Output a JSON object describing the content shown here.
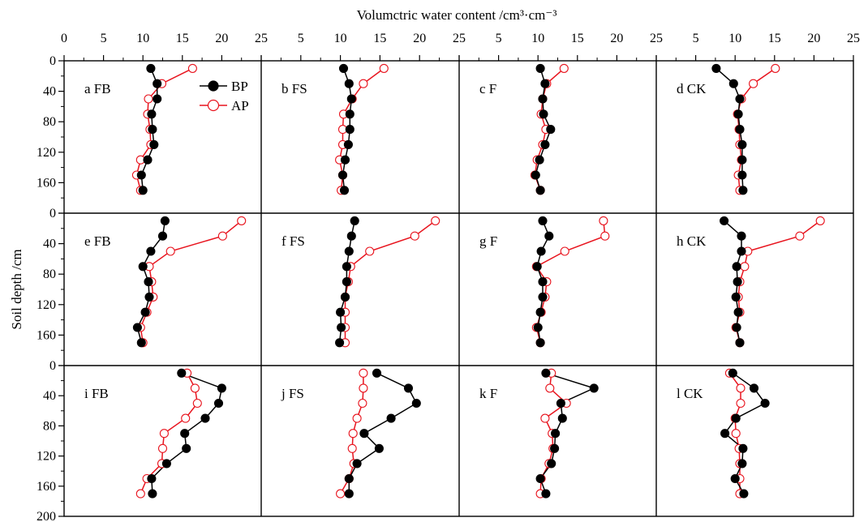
{
  "figure": {
    "x_axis_title": "Volumctric water content /cm³·cm⁻³",
    "y_axis_title": "Soil depth /cm",
    "legend": [
      {
        "name": "BP",
        "color": "#000000",
        "marker": "filled-circle"
      },
      {
        "name": "AP",
        "color": "#e8141e",
        "marker": "open-circle"
      }
    ],
    "x_tick_labels": [
      "0",
      "5",
      "10",
      "15",
      "20",
      "25"
    ],
    "y_tick_labels": [
      "0",
      "40",
      "80",
      "120",
      "160",
      "200"
    ]
  },
  "chart_data": [
    {
      "type": "line",
      "panel": "a FB",
      "xlim": [
        0,
        25
      ],
      "ylim": [
        200,
        0
      ],
      "series": [
        {
          "name": "BP",
          "x": [
            11.0,
            11.8,
            11.8,
            11.1,
            11.2,
            11.4,
            10.6,
            9.8,
            10.0
          ],
          "y": [
            10,
            30,
            50,
            70,
            90,
            110,
            130,
            150,
            170
          ]
        },
        {
          "name": "AP",
          "x": [
            16.3,
            12.4,
            10.7,
            10.6,
            10.9,
            11.0,
            9.7,
            9.2,
            9.7
          ],
          "y": [
            10,
            30,
            50,
            70,
            90,
            110,
            130,
            150,
            170
          ]
        }
      ]
    },
    {
      "type": "line",
      "panel": "b FS",
      "xlim": [
        0,
        25
      ],
      "ylim": [
        200,
        0
      ],
      "series": [
        {
          "name": "BP",
          "x": [
            10.4,
            11.1,
            11.4,
            11.2,
            11.2,
            11.0,
            10.6,
            10.3,
            10.5
          ],
          "y": [
            10,
            30,
            50,
            70,
            90,
            110,
            130,
            150,
            170
          ]
        },
        {
          "name": "AP",
          "x": [
            15.5,
            12.9,
            11.5,
            10.4,
            10.3,
            10.3,
            9.9,
            10.3,
            10.1
          ],
          "y": [
            10,
            30,
            50,
            70,
            90,
            110,
            130,
            150,
            170
          ]
        }
      ]
    },
    {
      "type": "line",
      "panel": "c F",
      "xlim": [
        0,
        25
      ],
      "ylim": [
        200,
        0
      ],
      "series": [
        {
          "name": "BP",
          "x": [
            10.3,
            10.9,
            10.6,
            10.7,
            11.6,
            10.9,
            10.2,
            9.7,
            10.3
          ],
          "y": [
            10,
            30,
            50,
            70,
            90,
            110,
            130,
            150,
            170
          ]
        },
        {
          "name": "AP",
          "x": [
            13.3,
            11.1,
            10.6,
            10.4,
            11.0,
            10.6,
            9.9,
            9.6,
            10.3
          ],
          "y": [
            10,
            30,
            50,
            70,
            90,
            110,
            130,
            150,
            170
          ]
        }
      ]
    },
    {
      "type": "line",
      "panel": "d CK",
      "xlim": [
        0,
        25
      ],
      "ylim": [
        200,
        0
      ],
      "series": [
        {
          "name": "BP",
          "x": [
            7.6,
            9.8,
            10.6,
            10.4,
            10.6,
            10.9,
            10.9,
            10.9,
            11.0
          ],
          "y": [
            10,
            30,
            50,
            70,
            90,
            110,
            130,
            150,
            170
          ]
        },
        {
          "name": "AP",
          "x": [
            15.1,
            12.3,
            10.8,
            10.3,
            10.5,
            10.6,
            10.8,
            10.4,
            10.6
          ],
          "y": [
            10,
            30,
            50,
            70,
            90,
            110,
            130,
            150,
            170
          ]
        }
      ]
    },
    {
      "type": "line",
      "panel": "e FB",
      "xlim": [
        0,
        25
      ],
      "ylim": [
        200,
        0
      ],
      "series": [
        {
          "name": "BP",
          "x": [
            12.8,
            12.5,
            11.0,
            10.0,
            10.7,
            10.8,
            10.3,
            9.3,
            9.8
          ],
          "y": [
            10,
            30,
            50,
            70,
            90,
            110,
            130,
            150,
            170
          ]
        },
        {
          "name": "AP",
          "x": [
            22.5,
            20.1,
            13.5,
            10.8,
            11.1,
            11.3,
            10.5,
            9.7,
            10.0
          ],
          "y": [
            10,
            30,
            50,
            70,
            90,
            110,
            130,
            150,
            170
          ]
        }
      ]
    },
    {
      "type": "line",
      "panel": "f FS",
      "xlim": [
        0,
        25
      ],
      "ylim": [
        200,
        0
      ],
      "series": [
        {
          "name": "BP",
          "x": [
            11.8,
            11.4,
            11.1,
            10.8,
            10.8,
            10.6,
            10.0,
            10.1,
            9.9
          ],
          "y": [
            10,
            30,
            50,
            70,
            90,
            110,
            130,
            150,
            170
          ]
        },
        {
          "name": "AP",
          "x": [
            22.0,
            19.4,
            13.7,
            11.3,
            11.0,
            10.6,
            10.6,
            10.6,
            10.6
          ],
          "y": [
            10,
            30,
            50,
            70,
            90,
            110,
            130,
            150,
            170
          ]
        }
      ]
    },
    {
      "type": "line",
      "panel": "g F",
      "xlim": [
        0,
        25
      ],
      "ylim": [
        200,
        0
      ],
      "series": [
        {
          "name": "BP",
          "x": [
            10.6,
            11.4,
            10.4,
            9.9,
            10.6,
            10.6,
            10.3,
            10.0,
            10.3
          ],
          "y": [
            10,
            30,
            50,
            70,
            90,
            110,
            130,
            150,
            170
          ]
        },
        {
          "name": "AP",
          "x": [
            18.3,
            18.5,
            13.4,
            9.8,
            11.1,
            10.9,
            10.4,
            9.8,
            10.3
          ],
          "y": [
            10,
            30,
            50,
            70,
            90,
            110,
            130,
            150,
            170
          ]
        }
      ]
    },
    {
      "type": "line",
      "panel": "h CK",
      "xlim": [
        0,
        25
      ],
      "ylim": [
        200,
        0
      ],
      "series": [
        {
          "name": "BP",
          "x": [
            8.6,
            10.8,
            10.8,
            10.2,
            10.3,
            10.1,
            10.4,
            10.2,
            10.6
          ],
          "y": [
            10,
            30,
            50,
            70,
            90,
            110,
            130,
            150,
            170
          ]
        },
        {
          "name": "AP",
          "x": [
            20.8,
            18.2,
            11.6,
            11.2,
            10.6,
            10.4,
            10.6,
            10.1,
            10.6
          ],
          "y": [
            10,
            30,
            50,
            70,
            90,
            110,
            130,
            150,
            170
          ]
        }
      ]
    },
    {
      "type": "line",
      "panel": "i FB",
      "xlim": [
        0,
        25
      ],
      "ylim": [
        200,
        0
      ],
      "series": [
        {
          "name": "BP",
          "x": [
            14.9,
            20.0,
            19.6,
            17.9,
            15.3,
            15.5,
            13.0,
            11.1,
            11.2
          ],
          "y": [
            10,
            30,
            50,
            70,
            90,
            110,
            130,
            150,
            170
          ]
        },
        {
          "name": "AP",
          "x": [
            15.6,
            16.6,
            16.9,
            15.4,
            12.7,
            12.5,
            12.4,
            10.5,
            9.7
          ],
          "y": [
            10,
            30,
            50,
            70,
            90,
            110,
            130,
            150,
            170
          ]
        }
      ]
    },
    {
      "type": "line",
      "panel": "j FS",
      "xlim": [
        0,
        25
      ],
      "ylim": [
        200,
        0
      ],
      "series": [
        {
          "name": "BP",
          "x": [
            14.6,
            18.6,
            19.6,
            16.4,
            13.0,
            14.9,
            12.1,
            11.1,
            11.1
          ],
          "y": [
            10,
            30,
            50,
            70,
            90,
            110,
            130,
            150,
            170
          ]
        },
        {
          "name": "AP",
          "x": [
            12.9,
            12.9,
            12.8,
            12.1,
            11.6,
            11.5,
            11.7,
            11.1,
            10.0
          ],
          "y": [
            10,
            30,
            50,
            70,
            90,
            110,
            130,
            150,
            170
          ]
        }
      ]
    },
    {
      "type": "line",
      "panel": "k F",
      "xlim": [
        0,
        25
      ],
      "ylim": [
        200,
        0
      ],
      "series": [
        {
          "name": "BP",
          "x": [
            11.0,
            17.1,
            12.9,
            13.1,
            12.2,
            12.1,
            11.7,
            10.3,
            11.0
          ],
          "y": [
            10,
            30,
            50,
            70,
            90,
            110,
            130,
            150,
            170
          ]
        },
        {
          "name": "AP",
          "x": [
            11.7,
            11.5,
            13.6,
            10.9,
            11.8,
            11.9,
            11.4,
            10.4,
            10.3
          ],
          "y": [
            10,
            30,
            50,
            70,
            90,
            110,
            130,
            150,
            170
          ]
        }
      ]
    },
    {
      "type": "line",
      "panel": "l CK",
      "xlim": [
        0,
        25
      ],
      "ylim": [
        200,
        0
      ],
      "series": [
        {
          "name": "BP",
          "x": [
            9.7,
            12.4,
            13.8,
            10.1,
            8.7,
            11.0,
            10.9,
            10.0,
            11.1
          ],
          "y": [
            10,
            30,
            50,
            70,
            90,
            110,
            130,
            150,
            170
          ]
        },
        {
          "name": "AP",
          "x": [
            9.3,
            10.7,
            10.7,
            10.0,
            10.1,
            10.5,
            10.6,
            10.6,
            10.6
          ],
          "y": [
            10,
            30,
            50,
            70,
            90,
            110,
            130,
            150,
            170
          ]
        }
      ]
    }
  ]
}
